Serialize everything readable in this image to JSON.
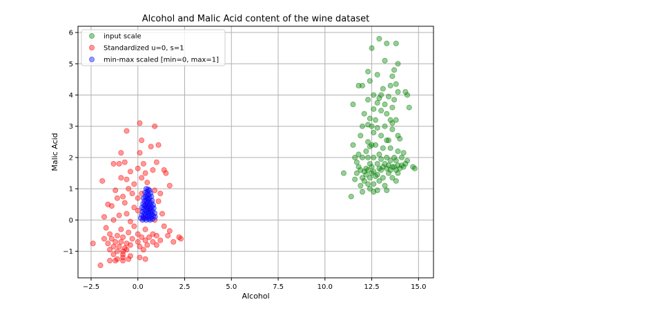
{
  "chart_data": {
    "type": "scatter",
    "title": "Alcohol and Malic Acid content of the wine dataset",
    "xlabel": "Alcohol",
    "ylabel": "Malic Acid",
    "xlim": [
      -3.2,
      15.8
    ],
    "ylim": [
      -1.85,
      6.2
    ],
    "xticks": [
      -2.5,
      0.0,
      2.5,
      5.0,
      7.5,
      10.0,
      12.5,
      15.0
    ],
    "xtick_labels": [
      "−2.5",
      "0.0",
      "2.5",
      "5.0",
      "7.5",
      "10.0",
      "12.5",
      "15.0"
    ],
    "yticks": [
      -1,
      0,
      1,
      2,
      3,
      4,
      5,
      6
    ],
    "ytick_labels": [
      "−1",
      "0",
      "1",
      "2",
      "3",
      "4",
      "5",
      "6"
    ],
    "grid": true,
    "legend_position": "top-left",
    "series": [
      {
        "name": "input scale",
        "color": "#008000",
        "points": [
          [
            12.9,
            5.8
          ],
          [
            13.3,
            5.65
          ],
          [
            13.8,
            5.65
          ],
          [
            12.5,
            5.5
          ],
          [
            13.2,
            5.1
          ],
          [
            13.9,
            5.0
          ],
          [
            12.3,
            4.75
          ],
          [
            12.8,
            4.65
          ],
          [
            13.6,
            4.6
          ],
          [
            13.7,
            4.8
          ],
          [
            12.4,
            4.45
          ],
          [
            11.8,
            4.3
          ],
          [
            12.0,
            4.3
          ],
          [
            13.5,
            4.3
          ],
          [
            13.8,
            4.35
          ],
          [
            13.1,
            4.2
          ],
          [
            14.3,
            4.1
          ],
          [
            14.4,
            4.0
          ],
          [
            13.9,
            4.1
          ],
          [
            12.6,
            4.0
          ],
          [
            13.0,
            4.0
          ],
          [
            13.4,
            3.95
          ],
          [
            12.9,
            3.9
          ],
          [
            12.3,
            3.85
          ],
          [
            13.7,
            3.85
          ],
          [
            12.8,
            3.75
          ],
          [
            13.2,
            3.7
          ],
          [
            13.6,
            3.6
          ],
          [
            11.5,
            3.7
          ],
          [
            14.5,
            3.6
          ],
          [
            12.6,
            3.55
          ],
          [
            13.0,
            3.5
          ],
          [
            12.1,
            3.4
          ],
          [
            13.3,
            3.4
          ],
          [
            12.4,
            3.25
          ],
          [
            12.7,
            3.2
          ],
          [
            13.5,
            3.2
          ],
          [
            13.6,
            3.1
          ],
          [
            13.8,
            3.2
          ],
          [
            12.3,
            3.05
          ],
          [
            12.0,
            3.0
          ],
          [
            12.5,
            3.0
          ],
          [
            13.2,
            3.0
          ],
          [
            12.8,
            2.95
          ],
          [
            13.6,
            2.9
          ],
          [
            12.6,
            2.8
          ],
          [
            11.9,
            2.7
          ],
          [
            13.0,
            2.7
          ],
          [
            13.9,
            2.7
          ],
          [
            14.0,
            2.6
          ],
          [
            13.3,
            2.55
          ],
          [
            13.4,
            2.55
          ],
          [
            12.3,
            2.5
          ],
          [
            12.5,
            2.4
          ],
          [
            12.7,
            2.4
          ],
          [
            11.5,
            2.4
          ],
          [
            12.4,
            2.35
          ],
          [
            13.1,
            2.3
          ],
          [
            13.5,
            2.3
          ],
          [
            12.2,
            2.2
          ],
          [
            13.9,
            2.2
          ],
          [
            14.2,
            2.15
          ],
          [
            12.9,
            2.1
          ],
          [
            11.8,
            2.1
          ],
          [
            12.0,
            2.0
          ],
          [
            11.6,
            2.0
          ],
          [
            12.3,
            2.0
          ],
          [
            12.6,
            2.0
          ],
          [
            13.3,
            2.0
          ],
          [
            13.7,
            2.0
          ],
          [
            14.1,
            2.0
          ],
          [
            13.0,
            1.95
          ],
          [
            13.5,
            1.9
          ],
          [
            13.8,
            1.9
          ],
          [
            14.4,
            1.9
          ],
          [
            11.7,
            1.85
          ],
          [
            12.4,
            1.8
          ],
          [
            12.8,
            1.8
          ],
          [
            13.2,
            1.8
          ],
          [
            13.4,
            1.75
          ],
          [
            13.6,
            1.7
          ],
          [
            13.9,
            1.75
          ],
          [
            14.1,
            1.75
          ],
          [
            14.3,
            1.8
          ],
          [
            14.7,
            1.7
          ],
          [
            14.8,
            1.65
          ],
          [
            11.8,
            1.7
          ],
          [
            12.2,
            1.65
          ],
          [
            12.5,
            1.7
          ],
          [
            12.9,
            1.65
          ],
          [
            13.1,
            1.7
          ],
          [
            13.3,
            1.65
          ],
          [
            13.7,
            1.7
          ],
          [
            14.0,
            1.65
          ],
          [
            14.2,
            1.7
          ],
          [
            11.9,
            1.6
          ],
          [
            12.1,
            1.55
          ],
          [
            12.3,
            1.6
          ],
          [
            12.6,
            1.55
          ],
          [
            13.0,
            1.6
          ],
          [
            13.5,
            1.6
          ],
          [
            13.8,
            1.6
          ],
          [
            11.0,
            1.5
          ],
          [
            11.7,
            1.5
          ],
          [
            12.2,
            1.45
          ],
          [
            12.5,
            1.5
          ],
          [
            12.8,
            1.45
          ],
          [
            13.4,
            1.5
          ],
          [
            13.9,
            1.5
          ],
          [
            12.0,
            1.35
          ],
          [
            12.4,
            1.35
          ],
          [
            12.7,
            1.4
          ],
          [
            13.1,
            1.35
          ],
          [
            13.6,
            1.35
          ],
          [
            11.6,
            1.3
          ],
          [
            12.1,
            1.25
          ],
          [
            12.9,
            1.25
          ],
          [
            13.8,
            1.25
          ],
          [
            12.3,
            1.15
          ],
          [
            12.6,
            1.15
          ],
          [
            11.9,
            1.1
          ],
          [
            13.2,
            1.1
          ],
          [
            12.4,
            1.0
          ],
          [
            12.8,
            0.95
          ],
          [
            13.3,
            0.95
          ],
          [
            12.6,
            0.9
          ],
          [
            12.0,
            0.9
          ],
          [
            11.4,
            0.75
          ]
        ]
      },
      {
        "name": "Standardized u=0, s=1",
        "color": "#ff0000",
        "points": [
          [
            0.1,
            3.1
          ],
          [
            -0.6,
            2.85
          ],
          [
            0.9,
            3.0
          ],
          [
            0.2,
            2.55
          ],
          [
            0.7,
            2.35
          ],
          [
            1.1,
            2.4
          ],
          [
            -0.9,
            2.15
          ],
          [
            0.1,
            2.15
          ],
          [
            -1.0,
            1.8
          ],
          [
            -1.3,
            1.8
          ],
          [
            -0.7,
            1.85
          ],
          [
            0.3,
            1.8
          ],
          [
            1.0,
            1.85
          ],
          [
            0.0,
            1.65
          ],
          [
            0.8,
            1.6
          ],
          [
            1.4,
            1.6
          ],
          [
            1.5,
            1.5
          ],
          [
            -0.4,
            1.55
          ],
          [
            0.4,
            1.5
          ],
          [
            -0.9,
            1.35
          ],
          [
            -0.6,
            1.3
          ],
          [
            0.2,
            1.35
          ],
          [
            -1.9,
            1.25
          ],
          [
            0.5,
            1.2
          ],
          [
            -0.2,
            1.15
          ],
          [
            1.7,
            1.1
          ],
          [
            -0.5,
            1.0
          ],
          [
            -1.2,
            0.95
          ],
          [
            0.9,
            0.95
          ],
          [
            -0.3,
            0.85
          ],
          [
            0.2,
            0.85
          ],
          [
            1.2,
            0.85
          ],
          [
            -1.1,
            0.7
          ],
          [
            -0.8,
            0.75
          ],
          [
            0.0,
            0.7
          ],
          [
            -1.6,
            0.5
          ],
          [
            -1.4,
            0.45
          ],
          [
            -0.7,
            0.55
          ],
          [
            1.1,
            0.6
          ],
          [
            -0.2,
            0.4
          ],
          [
            0.5,
            0.45
          ],
          [
            -1.8,
            0.1
          ],
          [
            -1.0,
            0.15
          ],
          [
            -0.6,
            0.2
          ],
          [
            0.0,
            0.3
          ],
          [
            1.3,
            0.2
          ],
          [
            -1.3,
            0.0
          ],
          [
            -0.4,
            -0.05
          ],
          [
            0.3,
            0.05
          ],
          [
            0.9,
            0.0
          ],
          [
            -1.7,
            -0.25
          ],
          [
            -0.9,
            -0.3
          ],
          [
            -0.2,
            -0.2
          ],
          [
            0.4,
            -0.3
          ],
          [
            1.4,
            -0.2
          ],
          [
            -1.5,
            -0.45
          ],
          [
            -1.1,
            -0.5
          ],
          [
            -0.5,
            -0.4
          ],
          [
            0.0,
            -0.45
          ],
          [
            0.8,
            -0.45
          ],
          [
            1.7,
            -0.35
          ],
          [
            -1.8,
            -0.6
          ],
          [
            -1.4,
            -0.6
          ],
          [
            -0.8,
            -0.55
          ],
          [
            -0.3,
            -0.6
          ],
          [
            0.2,
            -0.55
          ],
          [
            0.6,
            -0.55
          ],
          [
            1.0,
            -0.5
          ],
          [
            1.6,
            -0.5
          ],
          [
            2.3,
            -0.6
          ],
          [
            -1.6,
            -0.75
          ],
          [
            -1.2,
            -0.7
          ],
          [
            -0.9,
            -0.7
          ],
          [
            -0.6,
            -0.75
          ],
          [
            0.0,
            -0.7
          ],
          [
            0.4,
            -0.65
          ],
          [
            0.8,
            -0.7
          ],
          [
            1.2,
            -0.65
          ],
          [
            1.9,
            -0.7
          ],
          [
            2.2,
            -0.55
          ],
          [
            -2.4,
            -0.75
          ],
          [
            -1.3,
            -0.85
          ],
          [
            -1.0,
            -0.85
          ],
          [
            -0.7,
            -0.9
          ],
          [
            -0.4,
            -0.8
          ],
          [
            0.1,
            -0.85
          ],
          [
            0.5,
            -0.8
          ],
          [
            1.0,
            -0.8
          ],
          [
            -1.5,
            -0.95
          ],
          [
            -1.1,
            -1.0
          ],
          [
            -0.8,
            -1.0
          ],
          [
            -0.6,
            -0.95
          ],
          [
            0.3,
            -0.95
          ],
          [
            -1.3,
            -1.1
          ],
          [
            -0.8,
            -1.1
          ],
          [
            -0.4,
            -1.15
          ],
          [
            -0.8,
            -1.2
          ],
          [
            0.1,
            -1.2
          ],
          [
            -1.1,
            -1.25
          ],
          [
            -0.5,
            -1.25
          ],
          [
            0.4,
            -1.25
          ],
          [
            -1.5,
            -1.3
          ],
          [
            -1.2,
            -1.3
          ],
          [
            -2.0,
            -1.45
          ],
          [
            -0.8,
            -1.3
          ]
        ]
      },
      {
        "name": "min-max scaled [min=0, max=1]",
        "color": "#0000ff",
        "points": [
          [
            0.45,
            1.0
          ],
          [
            0.55,
            0.98
          ],
          [
            0.62,
            0.95
          ],
          [
            0.5,
            0.9
          ],
          [
            0.38,
            0.88
          ],
          [
            0.68,
            0.86
          ],
          [
            0.48,
            0.82
          ],
          [
            0.58,
            0.8
          ],
          [
            0.72,
            0.75
          ],
          [
            0.4,
            0.74
          ],
          [
            0.5,
            0.72
          ],
          [
            0.62,
            0.7
          ],
          [
            0.3,
            0.7
          ],
          [
            0.55,
            0.66
          ],
          [
            0.45,
            0.64
          ],
          [
            0.76,
            0.62
          ],
          [
            0.35,
            0.6
          ],
          [
            0.6,
            0.58
          ],
          [
            0.5,
            0.56
          ],
          [
            0.7,
            0.55
          ],
          [
            0.28,
            0.52
          ],
          [
            0.42,
            0.5
          ],
          [
            0.64,
            0.5
          ],
          [
            0.82,
            0.48
          ],
          [
            0.35,
            0.46
          ],
          [
            0.55,
            0.44
          ],
          [
            0.74,
            0.42
          ],
          [
            0.22,
            0.4
          ],
          [
            0.45,
            0.4
          ],
          [
            0.62,
            0.38
          ],
          [
            0.85,
            0.38
          ],
          [
            0.3,
            0.35
          ],
          [
            0.52,
            0.34
          ],
          [
            0.7,
            0.33
          ],
          [
            0.4,
            0.3
          ],
          [
            0.6,
            0.28
          ],
          [
            0.78,
            0.28
          ],
          [
            0.25,
            0.26
          ],
          [
            0.48,
            0.25
          ],
          [
            0.68,
            0.24
          ],
          [
            0.9,
            0.22
          ],
          [
            0.35,
            0.2
          ],
          [
            0.55,
            0.2
          ],
          [
            0.75,
            0.18
          ],
          [
            0.2,
            0.16
          ],
          [
            0.42,
            0.15
          ],
          [
            0.62,
            0.14
          ],
          [
            0.82,
            0.13
          ],
          [
            0.3,
            0.1
          ],
          [
            0.5,
            0.1
          ],
          [
            0.7,
            0.08
          ],
          [
            0.92,
            0.1
          ],
          [
            0.15,
            0.06
          ],
          [
            0.38,
            0.05
          ],
          [
            0.58,
            0.04
          ],
          [
            0.78,
            0.03
          ],
          [
            0.25,
            0.0
          ],
          [
            0.45,
            0.0
          ],
          [
            0.65,
            0.0
          ]
        ]
      }
    ]
  }
}
